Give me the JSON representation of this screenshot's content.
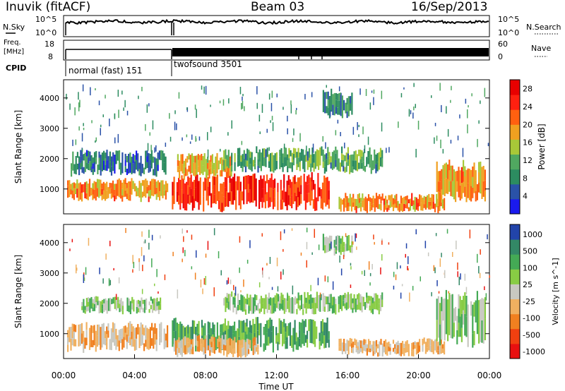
{
  "header": {
    "station": "Inuvik (fitACF)",
    "beam": "Beam 03",
    "date": "16/Sep/2013"
  },
  "top_panels": {
    "nsky": {
      "label": "N.Sky",
      "left_ticks": [
        "10^5",
        "10^0"
      ],
      "right_ticks": [
        "10^5",
        "10^0"
      ],
      "right_label": "N.Search"
    },
    "freq": {
      "label_line1": "Freq.",
      "label_line2": "[MHz]",
      "left_ticks": [
        "18",
        "8"
      ],
      "right_ticks": [
        "60",
        "0"
      ],
      "right_label": "Nave"
    },
    "cpid": {
      "label": "CPID",
      "segments": [
        {
          "name": "normal (fast) 151",
          "start_hour": 0.0,
          "end_hour": 6.0
        },
        {
          "name": "twofsound 3501",
          "start_hour": 6.0,
          "end_hour": 24.0
        }
      ]
    }
  },
  "chart_data": [
    {
      "type": "heatmap",
      "panel": "power",
      "ylabel": "Slant Range [km]",
      "xlabel": "",
      "ylim": [
        180,
        4600
      ],
      "xlim": [
        0,
        24
      ],
      "yticks": [
        1000,
        2000,
        3000,
        4000
      ],
      "colorbar": {
        "label": "Power [dB]",
        "range": [
          0,
          30
        ],
        "ticks": [
          "4",
          "8",
          "12",
          "16",
          "20",
          "24",
          "28"
        ],
        "colors": [
          "#1a1aee",
          "#2a52a8",
          "#2c8c60",
          "#50a860",
          "#a8c838",
          "#f0a020",
          "#ff6010",
          "#ff2010",
          "#e80000"
        ]
      },
      "bands": [
        {
          "x_start": 0.2,
          "x_end": 5.9,
          "y_low": 650,
          "y_high": 1300,
          "level": 20
        },
        {
          "x_start": 0.4,
          "x_end": 5.8,
          "y_low": 1500,
          "y_high": 2200,
          "level": 6
        },
        {
          "x_start": 6.1,
          "x_end": 15.0,
          "y_low": 400,
          "y_high": 1400,
          "level": 26
        },
        {
          "x_start": 6.4,
          "x_end": 9.5,
          "y_low": 1400,
          "y_high": 2100,
          "level": 18
        },
        {
          "x_start": 9.0,
          "x_end": 18.0,
          "y_low": 1600,
          "y_high": 2300,
          "level": 10
        },
        {
          "x_start": 14.6,
          "x_end": 16.3,
          "y_low": 3400,
          "y_high": 4200,
          "level": 8
        },
        {
          "x_start": 15.5,
          "x_end": 21.5,
          "y_low": 280,
          "y_high": 800,
          "level": 20
        },
        {
          "x_start": 21.0,
          "x_end": 23.8,
          "y_low": 700,
          "y_high": 1800,
          "level": 20
        }
      ]
    },
    {
      "type": "heatmap",
      "panel": "velocity",
      "ylabel": "Slant Range [km]",
      "xlabel": "Time UT",
      "ylim": [
        180,
        4600
      ],
      "xlim": [
        0,
        24
      ],
      "yticks": [
        1000,
        2000,
        3000,
        4000
      ],
      "xticks": [
        "00:00",
        "04:00",
        "08:00",
        "12:00",
        "16:00",
        "20:00",
        "00:00"
      ],
      "colorbar": {
        "label": "Velocity [m s^-1]",
        "ticks": [
          "1000",
          "500",
          "100",
          "25",
          "-25",
          "-100",
          "-500",
          "-1000"
        ],
        "colors": [
          "#2244aa",
          "#338866",
          "#44aa55",
          "#88cc44",
          "#c8c8c0",
          "#f0b060",
          "#f08020",
          "#f04010",
          "#e81010"
        ]
      },
      "bands": [
        {
          "x_start": 0.2,
          "x_end": 5.9,
          "y_low": 500,
          "y_high": 1300,
          "level": "-100"
        },
        {
          "x_start": 1.0,
          "x_end": 5.5,
          "y_low": 1700,
          "y_high": 2200,
          "level": "25"
        },
        {
          "x_start": 6.1,
          "x_end": 15.0,
          "y_low": 500,
          "y_high": 1400,
          "level": "100"
        },
        {
          "x_start": 6.2,
          "x_end": 11.0,
          "y_low": 300,
          "y_high": 900,
          "level": "-100"
        },
        {
          "x_start": 9.0,
          "x_end": 18.0,
          "y_low": 1700,
          "y_high": 2300,
          "level": "25"
        },
        {
          "x_start": 14.6,
          "x_end": 16.3,
          "y_low": 3600,
          "y_high": 4200,
          "level": "25"
        },
        {
          "x_start": 15.5,
          "x_end": 21.5,
          "y_low": 300,
          "y_high": 800,
          "level": "-100"
        },
        {
          "x_start": 21.0,
          "x_end": 23.8,
          "y_low": 700,
          "y_high": 2200,
          "level": "25"
        }
      ]
    }
  ]
}
